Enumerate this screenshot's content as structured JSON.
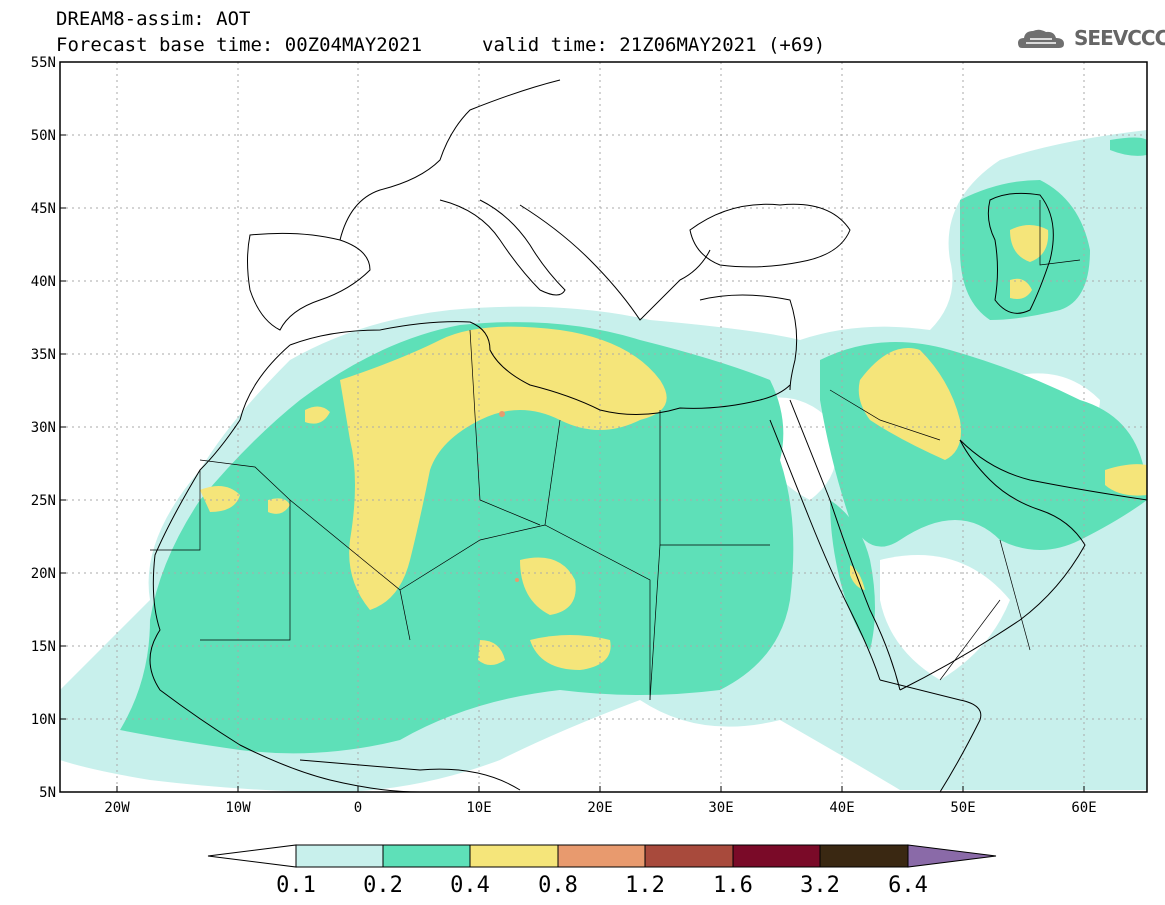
{
  "title": {
    "line1": "DREAM8-assim: AOT",
    "line2": "Forecast base time: 00Z04MAY2021",
    "valid": "valid time: 21Z06MAY2021 (+69)"
  },
  "logo": {
    "text": "SEEVCCC",
    "icon": "cloud-icon"
  },
  "map": {
    "lat_ticks": [
      "55N",
      "50N",
      "45N",
      "40N",
      "35N",
      "30N",
      "25N",
      "20N",
      "15N",
      "10N",
      "5N"
    ],
    "lon_ticks": [
      "20W",
      "10W",
      "0",
      "10E",
      "20E",
      "30E",
      "40E",
      "50E",
      "60E"
    ],
    "lat_range": [
      5,
      55
    ],
    "lon_range": [
      -25,
      65
    ],
    "grid": true
  },
  "colorbar": {
    "labels": [
      "0.1",
      "0.2",
      "0.4",
      "0.8",
      "1.2",
      "1.6",
      "3.2",
      "6.4"
    ],
    "colors": [
      "#ffffff",
      "#c8f0ec",
      "#5ee0b8",
      "#f5e57a",
      "#e89a6e",
      "#a84a3c",
      "#7a0a28",
      "#3a2812",
      "#8a6aa8"
    ]
  }
}
